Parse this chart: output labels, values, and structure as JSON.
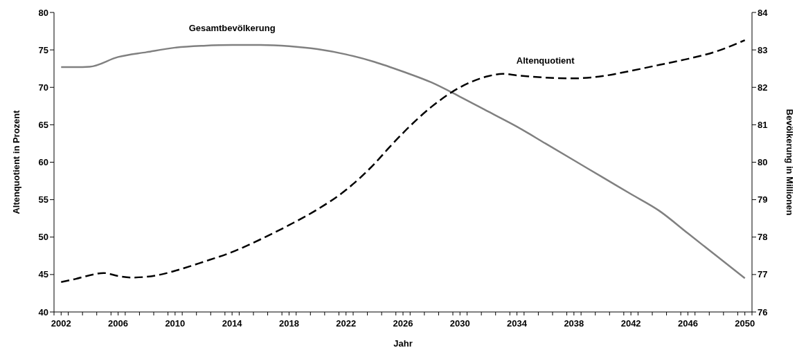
{
  "chart_data": {
    "type": "line",
    "xlabel": "Jahr",
    "ylabel": "Altenquotient in Prozent",
    "y2label": "Bevölkerung in Millionen",
    "xlim": [
      2001.5,
      2050.5
    ],
    "xticks": [
      {
        "value": 2001.5,
        "label": null
      },
      {
        "value": 2002,
        "label": "2002"
      },
      {
        "value": 2002.5,
        "label": null
      },
      {
        "value": 2003.5,
        "label": null
      },
      {
        "value": 2004.5,
        "label": null
      },
      {
        "value": 2005.5,
        "label": null
      },
      {
        "value": 2006,
        "label": "2006"
      },
      {
        "value": 2006.5,
        "label": null
      },
      {
        "value": 2007.5,
        "label": null
      },
      {
        "value": 2008.5,
        "label": null
      },
      {
        "value": 2009.5,
        "label": null
      },
      {
        "value": 2010,
        "label": "2010"
      },
      {
        "value": 2010.5,
        "label": null
      },
      {
        "value": 2011.5,
        "label": null
      },
      {
        "value": 2012.5,
        "label": null
      },
      {
        "value": 2013.5,
        "label": null
      },
      {
        "value": 2014,
        "label": "2014"
      },
      {
        "value": 2014.5,
        "label": null
      },
      {
        "value": 2015.5,
        "label": null
      },
      {
        "value": 2016.5,
        "label": null
      },
      {
        "value": 2017.5,
        "label": null
      },
      {
        "value": 2018,
        "label": "2018"
      },
      {
        "value": 2018.5,
        "label": null
      },
      {
        "value": 2019.5,
        "label": null
      },
      {
        "value": 2020.5,
        "label": null
      },
      {
        "value": 2021.5,
        "label": null
      },
      {
        "value": 2022,
        "label": "2022"
      },
      {
        "value": 2022.5,
        "label": null
      },
      {
        "value": 2023.5,
        "label": null
      },
      {
        "value": 2024.5,
        "label": null
      },
      {
        "value": 2025.5,
        "label": null
      },
      {
        "value": 2026,
        "label": "2026"
      },
      {
        "value": 2026.5,
        "label": null
      },
      {
        "value": 2027.5,
        "label": null
      },
      {
        "value": 2028.5,
        "label": null
      },
      {
        "value": 2029.5,
        "label": null
      },
      {
        "value": 2030,
        "label": "2030"
      },
      {
        "value": 2030.5,
        "label": null
      },
      {
        "value": 2031.5,
        "label": null
      },
      {
        "value": 2032.5,
        "label": null
      },
      {
        "value": 2033.5,
        "label": null
      },
      {
        "value": 2034,
        "label": "2034"
      },
      {
        "value": 2034.5,
        "label": null
      },
      {
        "value": 2035.5,
        "label": null
      },
      {
        "value": 2036.5,
        "label": null
      },
      {
        "value": 2037.5,
        "label": null
      },
      {
        "value": 2038,
        "label": "2038"
      },
      {
        "value": 2038.5,
        "label": null
      },
      {
        "value": 2039.5,
        "label": null
      },
      {
        "value": 2040.5,
        "label": null
      },
      {
        "value": 2041.5,
        "label": null
      },
      {
        "value": 2042,
        "label": "2042"
      },
      {
        "value": 2042.5,
        "label": null
      },
      {
        "value": 2043.5,
        "label": null
      },
      {
        "value": 2044.5,
        "label": null
      },
      {
        "value": 2045.5,
        "label": null
      },
      {
        "value": 2046,
        "label": "2046"
      },
      {
        "value": 2046.5,
        "label": null
      },
      {
        "value": 2047.5,
        "label": null
      },
      {
        "value": 2048.5,
        "label": null
      },
      {
        "value": 2049.5,
        "label": null
      },
      {
        "value": 2050,
        "label": "2050"
      },
      {
        "value": 2050.5,
        "label": null
      }
    ],
    "ylim": [
      40,
      80
    ],
    "yticks": [
      40,
      45,
      50,
      55,
      60,
      65,
      70,
      75,
      80
    ],
    "y2lim": [
      76,
      84
    ],
    "y2ticks": [
      76,
      77,
      78,
      79,
      80,
      81,
      82,
      83,
      84
    ],
    "marker": "none",
    "series": [
      {
        "name": "Gesamtbevölkerung",
        "color": "#808080",
        "axis": "y2",
        "line_style": "solid",
        "x": [
          2002,
          2003,
          2004,
          2006,
          2008,
          2010,
          2012,
          2014,
          2016,
          2018,
          2020,
          2022,
          2024,
          2026,
          2028,
          2030,
          2032,
          2034,
          2036,
          2038,
          2040,
          2042,
          2044,
          2046,
          2048,
          2050
        ],
        "values": [
          82.54,
          82.54,
          82.55,
          82.81,
          82.94,
          83.06,
          83.11,
          83.13,
          83.13,
          83.1,
          83.02,
          82.88,
          82.68,
          82.42,
          82.13,
          81.75,
          81.35,
          80.95,
          80.5,
          80.05,
          79.6,
          79.15,
          78.7,
          78.1,
          77.5,
          76.9
        ]
      },
      {
        "name": "Altenquotient",
        "color": "#000000",
        "axis": "y",
        "line_style": "dashed",
        "x": [
          2002,
          2003,
          2004,
          2005,
          2006,
          2007,
          2008,
          2009,
          2010,
          2012,
          2014,
          2016,
          2018,
          2020,
          2022,
          2024,
          2025,
          2026,
          2028,
          2030,
          2032,
          2033,
          2034,
          2036,
          2038,
          2040,
          2042,
          2044,
          2046,
          2048,
          2050
        ],
        "values": [
          44.0,
          44.4,
          44.9,
          45.2,
          44.8,
          44.6,
          44.7,
          45.0,
          45.5,
          46.7,
          48.0,
          49.7,
          51.6,
          53.7,
          56.3,
          59.8,
          61.9,
          63.9,
          67.4,
          70.0,
          71.5,
          71.8,
          71.6,
          71.3,
          71.2,
          71.5,
          72.2,
          73.0,
          73.8,
          74.8,
          76.3
        ]
      }
    ]
  }
}
